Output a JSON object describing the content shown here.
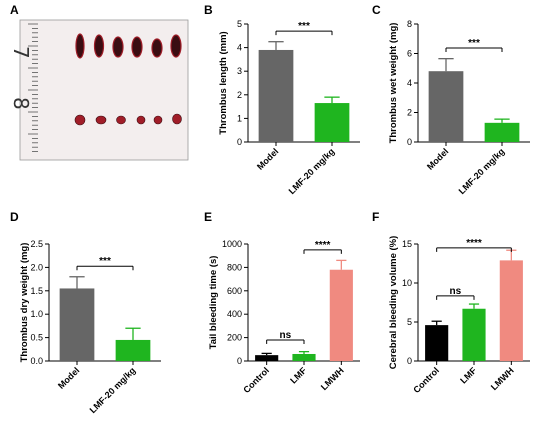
{
  "panel_letters": [
    "A",
    "B",
    "C",
    "D",
    "E",
    "F"
  ],
  "photo": {
    "ruler_numbers": [
      "7",
      "8"
    ],
    "colors": {
      "background": "#f3eeee",
      "clot_dark": "#3a0d12",
      "clot_red": "#a01d28",
      "ruler": "#555555"
    }
  },
  "colors": {
    "model": "#666666",
    "lmf": "#1fb51f",
    "control": "#000000",
    "lmwh": "#f08a80"
  },
  "chart_data": [
    {
      "panel": "B",
      "type": "bar",
      "categories": [
        "Model",
        "LMF-20 mg/kg"
      ],
      "values": [
        3.9,
        1.65
      ],
      "errors": [
        0.35,
        0.25
      ],
      "colors": [
        "#666666",
        "#1fb51f"
      ],
      "ylabel": "Thrombus length (mm)",
      "ylim": [
        0,
        5
      ],
      "yticks": [
        0,
        1,
        2,
        3,
        4,
        5
      ],
      "tick_labels": [
        "0",
        "1",
        "2",
        "3",
        "4",
        "5"
      ],
      "significance": [
        {
          "from": 0,
          "to": 1,
          "label": "***"
        }
      ]
    },
    {
      "panel": "C",
      "type": "bar",
      "categories": [
        "Model",
        "LMF-20 mg/kg"
      ],
      "values": [
        4.8,
        1.3
      ],
      "errors": [
        0.85,
        0.25
      ],
      "colors": [
        "#666666",
        "#1fb51f"
      ],
      "ylabel": "Thrombus wet weight (mg)",
      "ylim": [
        0,
        8
      ],
      "yticks": [
        0,
        2,
        4,
        6,
        8
      ],
      "tick_labels": [
        "0",
        "2",
        "4",
        "6",
        "8"
      ],
      "significance": [
        {
          "from": 0,
          "to": 1,
          "label": "***"
        }
      ]
    },
    {
      "panel": "D",
      "type": "bar",
      "categories": [
        "Model",
        "LMF-20 mg/kg"
      ],
      "values": [
        1.55,
        0.45
      ],
      "errors": [
        0.25,
        0.25
      ],
      "colors": [
        "#666666",
        "#1fb51f"
      ],
      "ylabel": "Thrombus dry weight (mg)",
      "ylim": [
        0,
        2.5
      ],
      "yticks": [
        0,
        0.5,
        1,
        1.5,
        2,
        2.5
      ],
      "tick_labels": [
        "0.0",
        "0.5",
        "1.0",
        "1.5",
        "2.0",
        "2.5"
      ],
      "significance": [
        {
          "from": 0,
          "to": 1,
          "label": "***"
        }
      ]
    },
    {
      "panel": "E",
      "type": "bar",
      "categories": [
        "Control",
        "LMF",
        "LMWH"
      ],
      "values": [
        50,
        60,
        780
      ],
      "errors": [
        15,
        20,
        80
      ],
      "colors": [
        "#000000",
        "#1fb51f",
        "#f08a80"
      ],
      "ylabel": "Tail bleeding time (s)",
      "ylim": [
        0,
        1000
      ],
      "yticks": [
        0,
        200,
        400,
        600,
        800,
        1000
      ],
      "tick_labels": [
        "0",
        "200",
        "400",
        "600",
        "800",
        "1000"
      ],
      "significance": [
        {
          "from": 0,
          "to": 1,
          "label": "ns"
        },
        {
          "from": 1,
          "to": 2,
          "label": "****"
        }
      ]
    },
    {
      "panel": "F",
      "type": "bar",
      "categories": [
        "Control",
        "LMF",
        "LMWH"
      ],
      "values": [
        4.6,
        6.7,
        12.9
      ],
      "errors": [
        0.5,
        0.6,
        1.3
      ],
      "colors": [
        "#000000",
        "#1fb51f",
        "#f08a80"
      ],
      "ylabel": "Cerebral bleeding volume (%)",
      "ylim": [
        0,
        15
      ],
      "yticks": [
        0,
        5,
        10,
        15
      ],
      "tick_labels": [
        "0",
        "5",
        "10",
        "15"
      ],
      "significance": [
        {
          "from": 0,
          "to": 1,
          "label": "ns"
        },
        {
          "from": 0,
          "to": 2,
          "label": "****"
        }
      ]
    }
  ]
}
